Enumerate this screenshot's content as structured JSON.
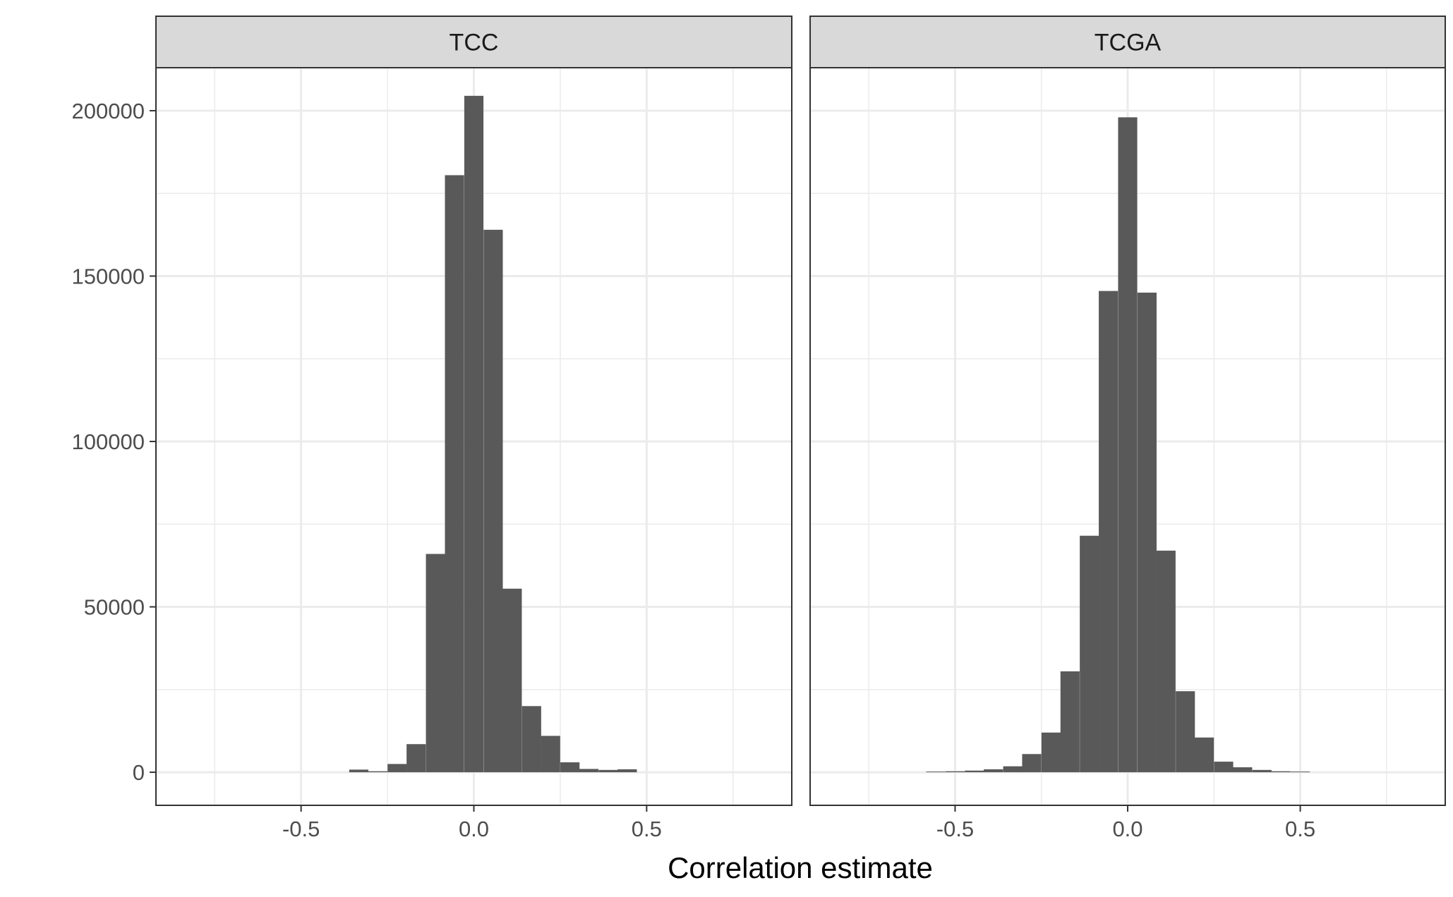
{
  "chart_data": {
    "type": "bar",
    "subtype": "faceted-histogram",
    "xlabel": "Correlation estimate",
    "ylabel": "",
    "xlim": [
      -0.92,
      0.92
    ],
    "ylim": [
      -10000,
      213000
    ],
    "x_ticks": [
      "-0.5",
      "0.0",
      "0.5"
    ],
    "x_tick_values": [
      -0.5,
      0.0,
      0.5
    ],
    "y_ticks": [
      "0",
      "50000",
      "100000",
      "150000",
      "200000"
    ],
    "y_tick_values": [
      0,
      50000,
      100000,
      150000,
      200000
    ],
    "grid": true,
    "bar_color": "#595959",
    "bin_width": 0.0555,
    "facets": [
      {
        "name": "TCC",
        "bins": [
          {
            "x": -0.333,
            "count": 800
          },
          {
            "x": -0.278,
            "count": 300
          },
          {
            "x": -0.222,
            "count": 2500
          },
          {
            "x": -0.167,
            "count": 8500
          },
          {
            "x": -0.111,
            "count": 66000
          },
          {
            "x": -0.056,
            "count": 180500
          },
          {
            "x": 0.0,
            "count": 204500
          },
          {
            "x": 0.056,
            "count": 164000
          },
          {
            "x": 0.111,
            "count": 55500
          },
          {
            "x": 0.167,
            "count": 20000
          },
          {
            "x": 0.222,
            "count": 11000
          },
          {
            "x": 0.278,
            "count": 3000
          },
          {
            "x": 0.333,
            "count": 1000
          },
          {
            "x": 0.389,
            "count": 700
          },
          {
            "x": 0.444,
            "count": 900
          }
        ]
      },
      {
        "name": "TCGA",
        "bins": [
          {
            "x": -0.556,
            "count": 200
          },
          {
            "x": -0.5,
            "count": 300
          },
          {
            "x": -0.444,
            "count": 500
          },
          {
            "x": -0.389,
            "count": 900
          },
          {
            "x": -0.333,
            "count": 1800
          },
          {
            "x": -0.278,
            "count": 5500
          },
          {
            "x": -0.222,
            "count": 12000
          },
          {
            "x": -0.167,
            "count": 30500
          },
          {
            "x": -0.111,
            "count": 71500
          },
          {
            "x": -0.056,
            "count": 145500
          },
          {
            "x": 0.0,
            "count": 198000
          },
          {
            "x": 0.056,
            "count": 145000
          },
          {
            "x": 0.111,
            "count": 67000
          },
          {
            "x": 0.167,
            "count": 24500
          },
          {
            "x": 0.222,
            "count": 10500
          },
          {
            "x": 0.278,
            "count": 3200
          },
          {
            "x": 0.333,
            "count": 1500
          },
          {
            "x": 0.389,
            "count": 700
          },
          {
            "x": 0.444,
            "count": 300
          },
          {
            "x": 0.5,
            "count": 200
          }
        ]
      }
    ]
  }
}
